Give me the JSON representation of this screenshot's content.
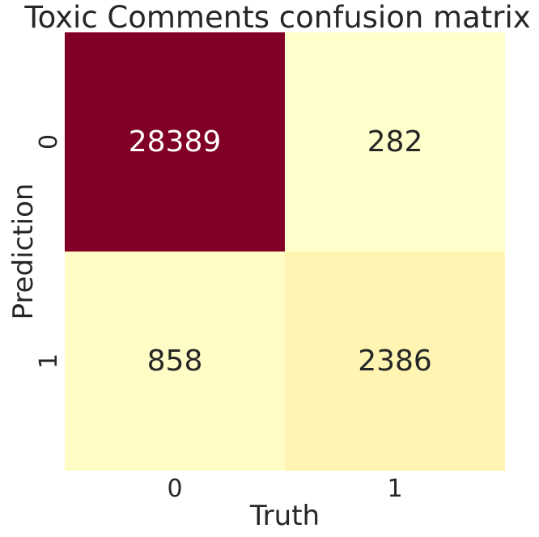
{
  "chart_data": {
    "type": "heatmap",
    "title": "Toxic Comments confusion matrix",
    "xlabel": "Truth",
    "ylabel": "Prediction",
    "x_categories": [
      "0",
      "1"
    ],
    "y_categories": [
      "0",
      "1"
    ],
    "values": [
      [
        28389,
        282
      ],
      [
        858,
        2386
      ]
    ],
    "colormap": "YlOrRd",
    "colors": {
      "low": "#ffffcc",
      "high": "#800026",
      "text_dark": "#262626",
      "text_light": "#ffffff"
    },
    "colorbar": false,
    "grid": false
  }
}
